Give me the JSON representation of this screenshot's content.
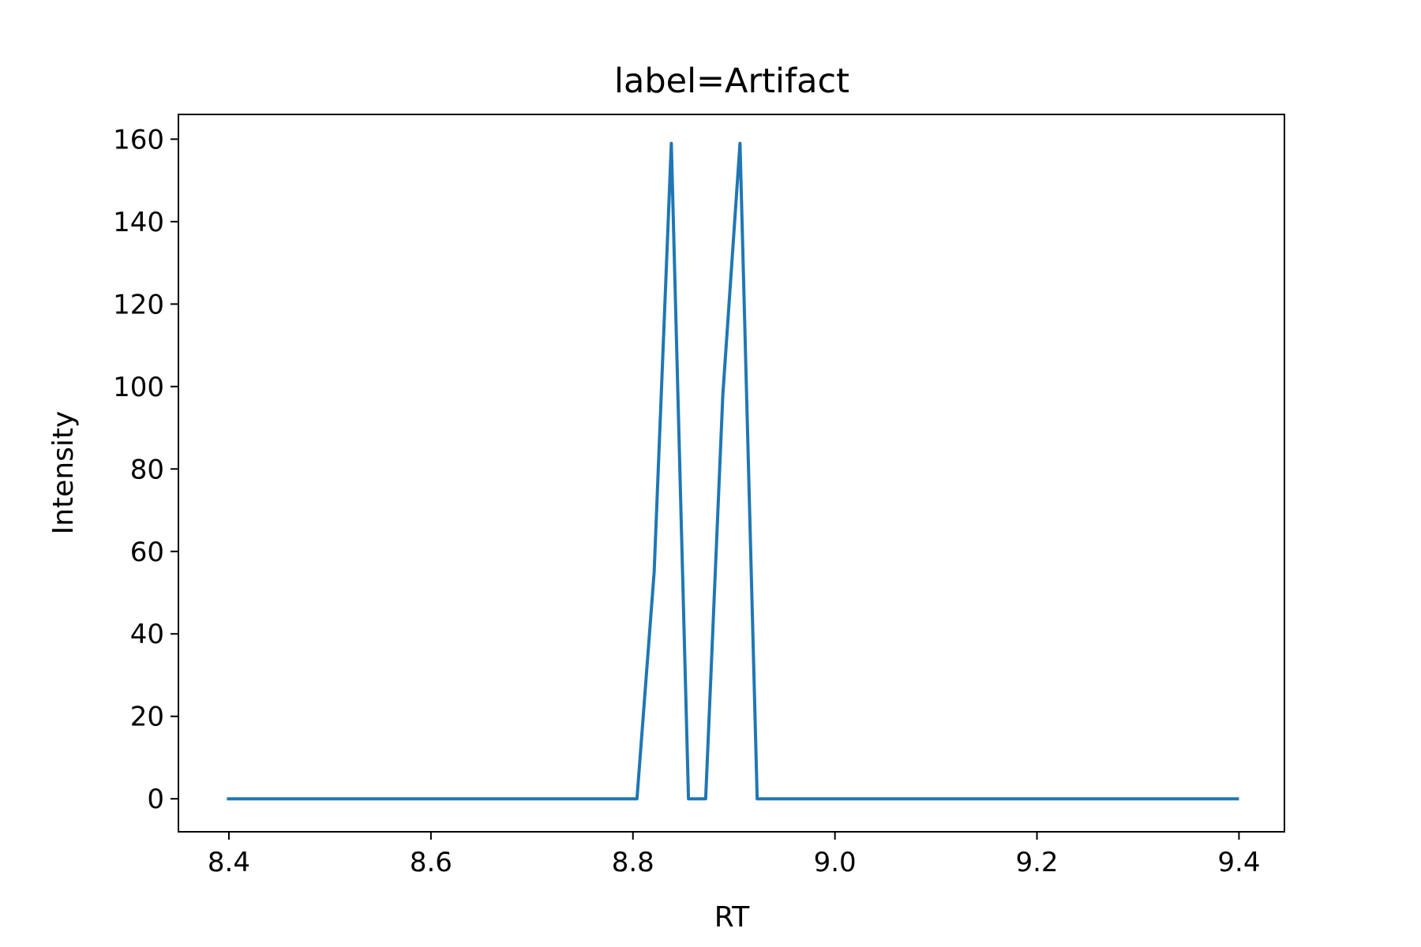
{
  "chart_data": {
    "type": "line",
    "title": "label=Artifact",
    "xlabel": "RT",
    "ylabel": "Intensity",
    "xlim": [
      8.35,
      9.445
    ],
    "ylim": [
      -8,
      166
    ],
    "x_ticks": [
      8.4,
      8.6,
      8.8,
      9.0,
      9.2,
      9.4
    ],
    "x_tick_labels": [
      "8.4",
      "8.6",
      "8.8",
      "9.0",
      "9.2",
      "9.4"
    ],
    "y_ticks": [
      0,
      20,
      40,
      60,
      80,
      100,
      120,
      140,
      160
    ],
    "y_tick_labels": [
      "0",
      "20",
      "40",
      "60",
      "80",
      "100",
      "120",
      "140",
      "160"
    ],
    "grid": false,
    "series": [
      {
        "color": "#1f77b4",
        "x": [
          8.398,
          8.804,
          8.821,
          8.838,
          8.855,
          8.872,
          8.889,
          8.906,
          8.923,
          9.4
        ],
        "y": [
          0,
          0,
          55,
          159,
          0,
          0,
          98,
          159,
          0,
          0
        ]
      }
    ]
  }
}
